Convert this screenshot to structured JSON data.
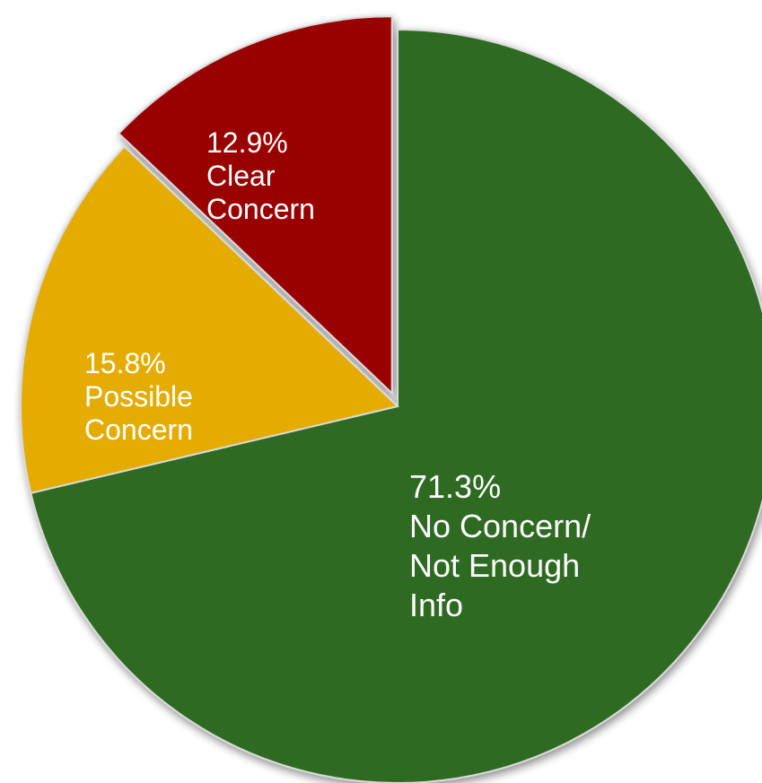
{
  "chart_data": {
    "type": "pie",
    "slices": [
      {
        "label": "No Concern/ Not Enough Info",
        "value": 71.3,
        "value_text": "71.3%",
        "label_lines": [
          "No Concern/",
          "Not Enough",
          "Info"
        ],
        "color": "#2e6b24",
        "exploded": false
      },
      {
        "label": "Possible Concern",
        "value": 15.8,
        "value_text": "15.8%",
        "label_lines": [
          "Possible",
          "Concern"
        ],
        "color": "#e5ac00",
        "exploded": false
      },
      {
        "label": "Clear Concern",
        "value": 12.9,
        "value_text": "12.9%",
        "label_lines": [
          "Clear",
          "Concern"
        ],
        "color": "#990000",
        "exploded": true
      }
    ],
    "start_angle": "12 o'clock, clockwise",
    "legend": "none"
  }
}
